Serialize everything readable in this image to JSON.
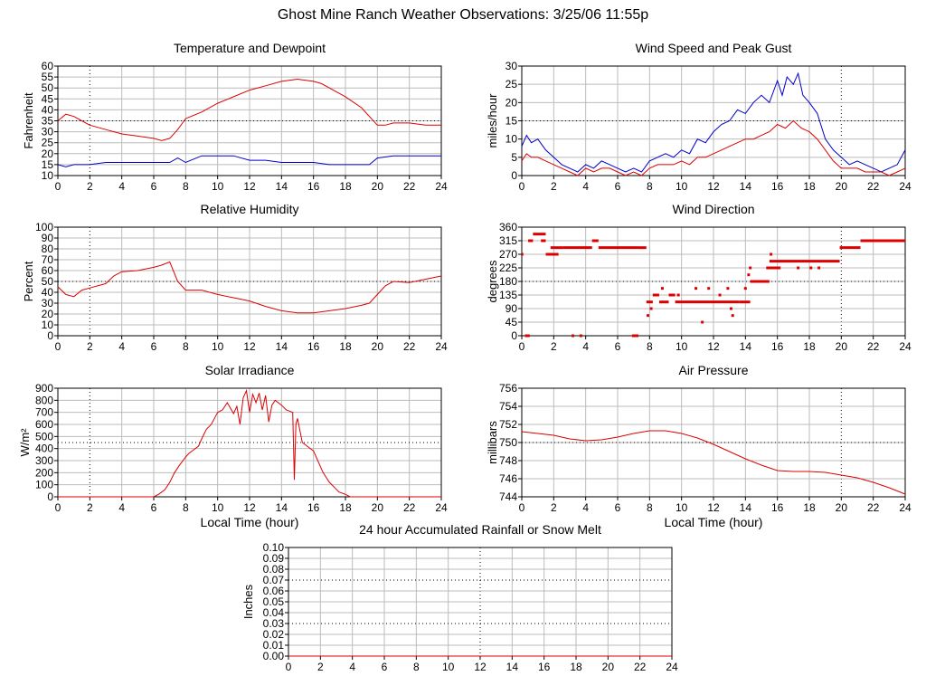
{
  "title": "Ghost Mine Ranch Weather Observations: 3/25/06 11:55p",
  "colors": {
    "series_red": "#dd0000",
    "series_blue": "#0000cc",
    "grid": "#bbbbbb",
    "axis": "#000000"
  },
  "chart_data": [
    {
      "id": "temp",
      "type": "line",
      "title": "Temperature and Dewpoint",
      "xlabel": "",
      "ylabel": "Fahrenheit",
      "xlim": [
        0,
        24
      ],
      "ylim": [
        10,
        60
      ],
      "xticks": [
        0,
        2,
        4,
        6,
        8,
        10,
        12,
        14,
        16,
        18,
        20,
        22,
        24
      ],
      "yticks": [
        10,
        15,
        20,
        25,
        30,
        35,
        40,
        45,
        50,
        55,
        60
      ],
      "grid": true,
      "dotted_x": [
        2
      ],
      "series": [
        {
          "color": "#dd0000",
          "x": [
            0,
            0.5,
            1,
            1.5,
            2,
            3,
            4,
            5,
            6,
            6.5,
            7,
            7.5,
            8,
            9,
            10,
            11,
            12,
            13,
            14,
            15,
            16,
            16.5,
            17,
            18,
            19,
            19.5,
            20,
            20.5,
            21,
            22,
            23,
            24
          ],
          "y": [
            35,
            38,
            37,
            35,
            33,
            31,
            29,
            28,
            27,
            26,
            27,
            31,
            36,
            39,
            43,
            46,
            49,
            51,
            53,
            54,
            53,
            52,
            50,
            46,
            41,
            37,
            33,
            33,
            34,
            34,
            33,
            33
          ]
        },
        {
          "color": "#0000cc",
          "x": [
            0,
            0.5,
            1,
            2,
            3,
            4,
            5,
            6,
            7,
            7.5,
            8,
            9,
            10,
            11,
            12,
            13,
            14,
            15,
            16,
            17,
            18,
            19,
            19.5,
            20,
            21,
            22,
            23,
            24
          ],
          "y": [
            15,
            14,
            15,
            15,
            16,
            16,
            16,
            16,
            16,
            18,
            16,
            19,
            19,
            19,
            17,
            17,
            16,
            16,
            16,
            15,
            15,
            15,
            15,
            18,
            19,
            19,
            19,
            19
          ]
        }
      ]
    },
    {
      "id": "wind",
      "type": "line",
      "title": "Wind Speed and Peak Gust",
      "xlabel": "",
      "ylabel": "miles/hour",
      "xlim": [
        0,
        24
      ],
      "ylim": [
        0,
        30
      ],
      "xticks": [
        0,
        2,
        4,
        6,
        8,
        10,
        12,
        14,
        16,
        18,
        20,
        22,
        24
      ],
      "yticks": [
        0,
        5,
        10,
        15,
        20,
        25,
        30
      ],
      "grid": true,
      "dotted_x": [
        20
      ],
      "series": [
        {
          "color": "#0000cc",
          "x": [
            0,
            0.3,
            0.6,
            1,
            1.5,
            2,
            2.5,
            3,
            3.5,
            4,
            4.5,
            5,
            5.5,
            6,
            6.5,
            7,
            7.5,
            8,
            8.5,
            9,
            9.5,
            10,
            10.5,
            11,
            11.5,
            12,
            12.5,
            13,
            13.5,
            14,
            14.5,
            15,
            15.5,
            16,
            16.3,
            16.6,
            17,
            17.3,
            17.6,
            18,
            18.5,
            19,
            19.5,
            20,
            20.5,
            21,
            21.5,
            22,
            22.5,
            23,
            23.5,
            24
          ],
          "y": [
            8,
            11,
            9,
            10,
            7,
            5,
            3,
            2,
            1,
            3,
            2,
            4,
            3,
            2,
            1,
            2,
            1,
            4,
            5,
            6,
            5,
            7,
            6,
            10,
            9,
            12,
            14,
            15,
            18,
            17,
            20,
            22,
            20,
            26,
            22,
            27,
            25,
            28,
            22,
            20,
            17,
            10,
            7,
            5,
            3,
            4,
            3,
            2,
            1,
            2,
            3,
            7
          ]
        },
        {
          "color": "#dd0000",
          "x": [
            0,
            0.3,
            0.6,
            1,
            1.5,
            2,
            2.5,
            3,
            3.5,
            4,
            4.5,
            5,
            5.5,
            6,
            6.5,
            7,
            7.5,
            8,
            8.5,
            9,
            9.5,
            10,
            10.5,
            11,
            11.5,
            12,
            12.5,
            13,
            13.5,
            14,
            14.5,
            15,
            15.5,
            16,
            16.5,
            17,
            17.5,
            18,
            18.5,
            19,
            19.5,
            20,
            20.5,
            21,
            21.5,
            22,
            22.5,
            23,
            23.5,
            24
          ],
          "y": [
            4,
            6,
            5,
            5,
            4,
            3,
            2,
            1,
            0,
            2,
            1,
            2,
            2,
            1,
            0,
            1,
            0,
            2,
            3,
            3,
            3,
            4,
            3,
            5,
            5,
            6,
            7,
            8,
            9,
            10,
            10,
            11,
            12,
            14,
            13,
            15,
            13,
            12,
            10,
            7,
            4,
            2,
            2,
            2,
            1,
            1,
            1,
            0,
            1,
            2
          ]
        }
      ]
    },
    {
      "id": "rh",
      "type": "line",
      "title": "Relative Humidity",
      "xlabel": "",
      "ylabel": "Percent",
      "xlim": [
        0,
        24
      ],
      "ylim": [
        0,
        100
      ],
      "xticks": [
        0,
        2,
        4,
        6,
        8,
        10,
        12,
        14,
        16,
        18,
        20,
        22,
        24
      ],
      "yticks": [
        0,
        10,
        20,
        30,
        40,
        50,
        60,
        70,
        80,
        90,
        100
      ],
      "grid": true,
      "dotted_x": [
        2
      ],
      "series": [
        {
          "color": "#dd0000",
          "x": [
            0,
            0.5,
            1,
            1.5,
            2,
            3,
            3.5,
            4,
            5,
            6,
            6.5,
            7,
            7.5,
            8,
            9,
            10,
            11,
            12,
            13,
            14,
            15,
            16,
            17,
            18,
            19,
            19.5,
            20,
            20.5,
            21,
            22,
            23,
            24
          ],
          "y": [
            45,
            38,
            36,
            42,
            44,
            48,
            55,
            59,
            60,
            63,
            65,
            68,
            50,
            42,
            42,
            38,
            35,
            32,
            27,
            23,
            21,
            21,
            23,
            25,
            28,
            30,
            38,
            46,
            50,
            49,
            52,
            55
          ]
        }
      ]
    },
    {
      "id": "wdir",
      "type": "scatter",
      "title": "Wind Direction",
      "xlabel": "",
      "ylabel": "degrees",
      "xlim": [
        0,
        24
      ],
      "ylim": [
        0,
        360
      ],
      "xticks": [
        0,
        2,
        4,
        6,
        8,
        10,
        12,
        14,
        16,
        18,
        20,
        22,
        24
      ],
      "yticks": [
        0,
        45,
        90,
        135,
        180,
        225,
        270,
        315,
        360
      ],
      "grid": true,
      "dotted_x": [
        20
      ],
      "series": [
        {
          "color": "#dd0000",
          "segments": [
            {
              "x1": 0.0,
              "x2": 0.1,
              "y": 270
            },
            {
              "x1": 0.2,
              "x2": 0.5,
              "y": 0
            },
            {
              "x1": 0.4,
              "x2": 0.7,
              "y": 315
            },
            {
              "x1": 0.7,
              "x2": 1.5,
              "y": 337
            },
            {
              "x1": 1.2,
              "x2": 1.5,
              "y": 315
            },
            {
              "x1": 1.5,
              "x2": 2.3,
              "y": 270
            },
            {
              "x1": 1.8,
              "x2": 2.6,
              "y": 292
            },
            {
              "x1": 2.6,
              "x2": 4.4,
              "y": 292
            },
            {
              "x1": 4.4,
              "x2": 4.8,
              "y": 315
            },
            {
              "x1": 4.8,
              "x2": 7.3,
              "y": 292
            },
            {
              "x1": 7.3,
              "x2": 7.8,
              "y": 292
            },
            {
              "x1": 6.9,
              "x2": 7.3,
              "y": 0
            },
            {
              "x1": 7.8,
              "x2": 8.2,
              "y": 112
            },
            {
              "x1": 8.2,
              "x2": 8.6,
              "y": 135
            },
            {
              "x1": 8.6,
              "x2": 9.2,
              "y": 112
            },
            {
              "x1": 9.2,
              "x2": 9.6,
              "y": 135
            },
            {
              "x1": 9.6,
              "x2": 13.6,
              "y": 112
            },
            {
              "x1": 13.6,
              "x2": 14.3,
              "y": 112
            },
            {
              "x1": 14.3,
              "x2": 15.5,
              "y": 180
            },
            {
              "x1": 15.3,
              "x2": 16.2,
              "y": 225
            },
            {
              "x1": 15.5,
              "x2": 19.9,
              "y": 247
            },
            {
              "x1": 19.9,
              "x2": 21.2,
              "y": 292
            },
            {
              "x1": 21.2,
              "x2": 24,
              "y": 315
            }
          ],
          "points": [
            {
              "x": 3.2,
              "y": 0
            },
            {
              "x": 3.7,
              "y": 0
            },
            {
              "x": 7.9,
              "y": 67
            },
            {
              "x": 8.1,
              "y": 90
            },
            {
              "x": 8.8,
              "y": 157
            },
            {
              "x": 9.8,
              "y": 135
            },
            {
              "x": 10.9,
              "y": 157
            },
            {
              "x": 11.3,
              "y": 45
            },
            {
              "x": 11.7,
              "y": 157
            },
            {
              "x": 12.4,
              "y": 135
            },
            {
              "x": 12.9,
              "y": 157
            },
            {
              "x": 13.1,
              "y": 90
            },
            {
              "x": 13.2,
              "y": 67
            },
            {
              "x": 14.0,
              "y": 157
            },
            {
              "x": 14.2,
              "y": 202
            },
            {
              "x": 14.3,
              "y": 225
            },
            {
              "x": 15.6,
              "y": 270
            },
            {
              "x": 17.3,
              "y": 225
            },
            {
              "x": 18.1,
              "y": 225
            },
            {
              "x": 18.6,
              "y": 225
            }
          ]
        }
      ]
    },
    {
      "id": "solar",
      "type": "line",
      "title": "Solar Irradiance",
      "xlabel": "Local Time (hour)",
      "ylabel": "W/m²",
      "xlim": [
        0,
        24
      ],
      "ylim": [
        0,
        900
      ],
      "xticks": [
        0,
        2,
        4,
        6,
        8,
        10,
        12,
        14,
        16,
        18,
        20,
        22,
        24
      ],
      "yticks": [
        0,
        100,
        200,
        300,
        400,
        500,
        600,
        700,
        800,
        900
      ],
      "grid": true,
      "dotted_x": [
        2
      ],
      "series": [
        {
          "color": "#dd0000",
          "x": [
            0,
            6,
            6.3,
            6.7,
            7,
            7.3,
            7.6,
            8,
            8.2,
            8.5,
            8.8,
            9,
            9.3,
            9.6,
            10,
            10.3,
            10.6,
            11,
            11.2,
            11.4,
            11.6,
            11.8,
            12,
            12.2,
            12.4,
            12.6,
            12.8,
            13,
            13.2,
            13.4,
            13.6,
            14,
            14.3,
            14.5,
            14.7,
            14.8,
            14.9,
            15,
            15.3,
            15.6,
            16,
            16.3,
            16.6,
            17,
            17.3,
            17.6,
            18,
            18.3,
            18.6,
            19,
            24
          ],
          "y": [
            0,
            0,
            20,
            60,
            120,
            200,
            260,
            330,
            360,
            390,
            420,
            480,
            560,
            600,
            700,
            720,
            780,
            690,
            750,
            600,
            820,
            880,
            700,
            850,
            780,
            860,
            720,
            840,
            620,
            760,
            800,
            760,
            720,
            710,
            700,
            140,
            600,
            650,
            450,
            420,
            380,
            290,
            200,
            120,
            80,
            40,
            20,
            0,
            0,
            0,
            0
          ]
        }
      ]
    },
    {
      "id": "pressure",
      "type": "line",
      "title": "Air Pressure",
      "xlabel": "Local Time (hour)",
      "ylabel": "millibars",
      "xlim": [
        0,
        24
      ],
      "ylim": [
        744,
        756
      ],
      "xticks": [
        0,
        2,
        4,
        6,
        8,
        10,
        12,
        14,
        16,
        18,
        20,
        22,
        24
      ],
      "yticks": [
        744,
        746,
        748,
        750,
        752,
        754,
        756
      ],
      "grid": true,
      "dotted_x": [
        20
      ],
      "series": [
        {
          "color": "#dd0000",
          "x": [
            0,
            1,
            2,
            3,
            4,
            5,
            6,
            7,
            8,
            9,
            10,
            11,
            12,
            13,
            14,
            15,
            16,
            17,
            18,
            19,
            20,
            21,
            22,
            23,
            24
          ],
          "y": [
            751.2,
            751,
            750.8,
            750.4,
            750.2,
            750.3,
            750.6,
            751,
            751.3,
            751.3,
            751,
            750.5,
            749.8,
            749,
            748.2,
            747.5,
            746.9,
            746.8,
            746.8,
            746.7,
            746.4,
            746.1,
            745.6,
            745.0,
            744.3
          ]
        }
      ]
    },
    {
      "id": "rain",
      "type": "line",
      "title": "24 hour Accumulated Rainfall or Snow Melt",
      "xlabel": "",
      "ylabel": "Inches",
      "xlim": [
        0,
        24
      ],
      "ylim": [
        0,
        0.1
      ],
      "xticks": [
        0,
        2,
        4,
        6,
        8,
        10,
        12,
        14,
        16,
        18,
        20,
        22,
        24
      ],
      "ytick_labels": [
        "0.00",
        "0.01",
        "0.02",
        "0.03",
        "0.04",
        "0.05",
        "0.06",
        "0.07",
        "0.08",
        "0.09",
        "0.10"
      ],
      "yticks": [
        0,
        0.01,
        0.02,
        0.03,
        0.04,
        0.05,
        0.06,
        0.07,
        0.08,
        0.09,
        0.1
      ],
      "grid": true,
      "dotted_x": [
        12
      ],
      "series": [
        {
          "color": "#dd0000",
          "x": [
            0,
            24
          ],
          "y": [
            0,
            0
          ]
        }
      ]
    }
  ]
}
